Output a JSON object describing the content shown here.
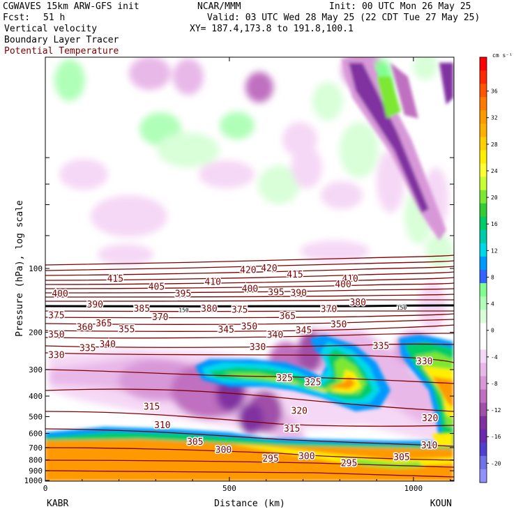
{
  "header": {
    "model": "CGWAVES 15km ARW-GFS init",
    "org": "NCAR/MMM",
    "init": "Init: 00 UTC Mon 26 May 25",
    "fcst_label": "Fcst:",
    "fcst_value": "51 h",
    "valid": "Valid: 03 UTC Wed 28 May 25 (22 CDT Tue 27 May 25)",
    "field1": "Vertical velocity",
    "field2": "Boundary Layer Tracer",
    "field3": "Potential Temperature",
    "xy": "XY= 187.4,173.8 to 191.8,100.1"
  },
  "colors": {
    "theta_contour": "#800000",
    "theta_label": "#800000"
  },
  "chart_data": {
    "type": "heatmap",
    "xlabel": "Distance (km)",
    "ylabel": "Pressure (hPa), log scale",
    "xlim": [
      0,
      1110
    ],
    "x_ticks": [
      0,
      500,
      1000
    ],
    "y_ticks": [
      100,
      200,
      300,
      400,
      500,
      600,
      700,
      800,
      900,
      1000
    ],
    "y_scale": "log",
    "endpoints": {
      "left": "KABR",
      "right": "KOUN"
    },
    "colorbar": {
      "unit": "cm s⁻¹",
      "tick_labels": [
        36,
        32,
        28,
        24,
        20,
        16,
        12,
        8,
        4,
        0,
        -4,
        -8,
        -12,
        -16,
        -20
      ],
      "colors": [
        "#ff0000",
        "#ff2a00",
        "#ff5500",
        "#ff7a00",
        "#ff9900",
        "#ffb000",
        "#ffd000",
        "#ffee00",
        "#ffff33",
        "#c8ff32",
        "#7ce832",
        "#33cc33",
        "#00cc66",
        "#00ccaa",
        "#00d8e8",
        "#0099ff",
        "#3366ff",
        "#80ff90",
        "#b0ffb8",
        "#d8ffd8",
        "#ffffff",
        "#ffffff",
        "#f5d8f5",
        "#e8b8e8",
        "#d898d8",
        "#c070c0",
        "#a050a8",
        "#8030a0",
        "#6a2ab0",
        "#5040d0",
        "#7070e8",
        "#9090ff"
      ]
    },
    "theta_labels": [
      {
        "v": "415",
        "x": 190,
        "p": 112
      },
      {
        "v": "405",
        "x": 302,
        "p": 122
      },
      {
        "v": "395",
        "x": 374,
        "p": 132
      },
      {
        "v": "410",
        "x": 455,
        "p": 116
      },
      {
        "v": "420",
        "x": 551,
        "p": 102
      },
      {
        "v": "420",
        "x": 608,
        "p": 100
      },
      {
        "v": "415",
        "x": 678,
        "p": 107
      },
      {
        "v": "410",
        "x": 828,
        "p": 112
      },
      {
        "v": "400",
        "x": 40,
        "p": 132
      },
      {
        "v": "400",
        "x": 556,
        "p": 125
      },
      {
        "v": "395",
        "x": 627,
        "p": 130
      },
      {
        "v": "390",
        "x": 688,
        "p": 131
      },
      {
        "v": "400",
        "x": 809,
        "p": 119
      },
      {
        "v": "390",
        "x": 135,
        "p": 148
      },
      {
        "v": "385",
        "x": 262,
        "p": 155
      },
      {
        "v": "380",
        "x": 445,
        "p": 155
      },
      {
        "v": "375",
        "x": 528,
        "p": 157
      },
      {
        "v": "380",
        "x": 849,
        "p": 145
      },
      {
        "v": "370",
        "x": 770,
        "p": 156
      },
      {
        "v": "375",
        "x": 30,
        "p": 167
      },
      {
        "v": "370",
        "x": 312,
        "p": 170
      },
      {
        "v": "365",
        "x": 658,
        "p": 168
      },
      {
        "v": "365",
        "x": 159,
        "p": 182
      },
      {
        "v": "360",
        "x": 107,
        "p": 190
      },
      {
        "v": "355",
        "x": 221,
        "p": 194
      },
      {
        "v": "350",
        "x": 30,
        "p": 205
      },
      {
        "v": "345",
        "x": 491,
        "p": 195
      },
      {
        "v": "350",
        "x": 554,
        "p": 188
      },
      {
        "v": "340",
        "x": 624,
        "p": 206
      },
      {
        "v": "345",
        "x": 702,
        "p": 196
      },
      {
        "v": "350",
        "x": 797,
        "p": 184
      },
      {
        "v": "340",
        "x": 169,
        "p": 228
      },
      {
        "v": "335",
        "x": 115,
        "p": 238
      },
      {
        "v": "330",
        "x": 30,
        "p": 257
      },
      {
        "v": "330",
        "x": 577,
        "p": 235
      },
      {
        "v": "335",
        "x": 912,
        "p": 233
      },
      {
        "v": "330",
        "x": 1030,
        "p": 275
      },
      {
        "v": "325",
        "x": 650,
        "p": 330
      },
      {
        "v": "325",
        "x": 727,
        "p": 345
      },
      {
        "v": "320",
        "x": 690,
        "p": 470
      },
      {
        "v": "315",
        "x": 289,
        "p": 450
      },
      {
        "v": "315",
        "x": 670,
        "p": 570
      },
      {
        "v": "320",
        "x": 1045,
        "p": 510
      },
      {
        "v": "310",
        "x": 318,
        "p": 550
      },
      {
        "v": "310",
        "x": 1043,
        "p": 685
      },
      {
        "v": "305",
        "x": 407,
        "p": 660
      },
      {
        "v": "300",
        "x": 484,
        "p": 720
      },
      {
        "v": "295",
        "x": 612,
        "p": 790
      },
      {
        "v": "300",
        "x": 710,
        "p": 770
      },
      {
        "v": "295",
        "x": 825,
        "p": 830
      },
      {
        "v": "305",
        "x": 968,
        "p": 780
      }
    ],
    "tracer_labels": [
      {
        "v": "150",
        "x": 376,
        "p": 157
      },
      {
        "v": "150",
        "x": 968,
        "p": 153
      }
    ]
  }
}
